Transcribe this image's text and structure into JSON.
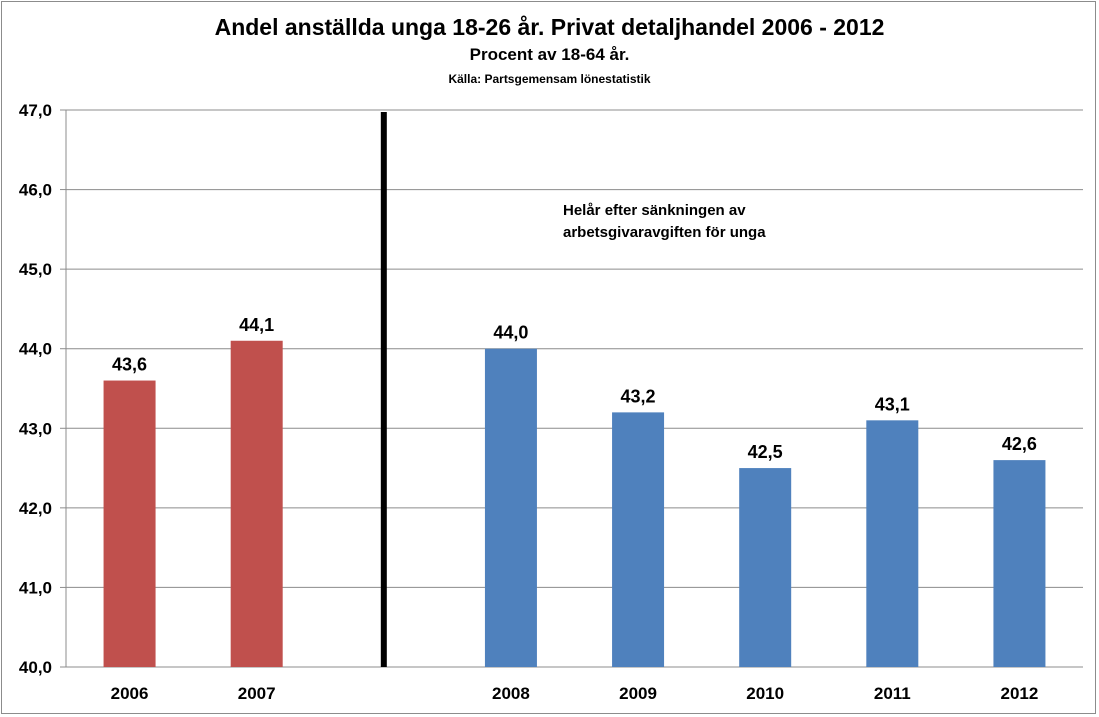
{
  "chart_data": {
    "type": "bar",
    "title": "Andel anställda unga 18-26 år. Privat detaljhandel 2006 - 2012",
    "subtitle": "Procent av 18-64 år.",
    "source": "Källa: Partsgemensam lönestatistik",
    "categories": [
      "2006",
      "2007",
      "2008",
      "2009",
      "2010",
      "2011",
      "2012"
    ],
    "values": [
      43.6,
      44.1,
      44.0,
      43.2,
      42.5,
      43.1,
      42.6
    ],
    "data_labels": [
      "43,6",
      "44,1",
      "44,0",
      "43,2",
      "42,5",
      "43,1",
      "42,6"
    ],
    "bar_colors": [
      "#c0504d",
      "#c0504d",
      "#4f81bd",
      "#4f81bd",
      "#4f81bd",
      "#4f81bd",
      "#4f81bd"
    ],
    "ylim": [
      40,
      47
    ],
    "yticks": [
      "40,0",
      "41,0",
      "42,0",
      "43,0",
      "44,0",
      "45,0",
      "46,0",
      "47,0"
    ],
    "grid": true,
    "divider_after_category": "2007",
    "annotation": [
      "Helår efter sänkningen av",
      "arbetsgivaravgiften för unga"
    ],
    "xlabel": "",
    "ylabel": ""
  }
}
